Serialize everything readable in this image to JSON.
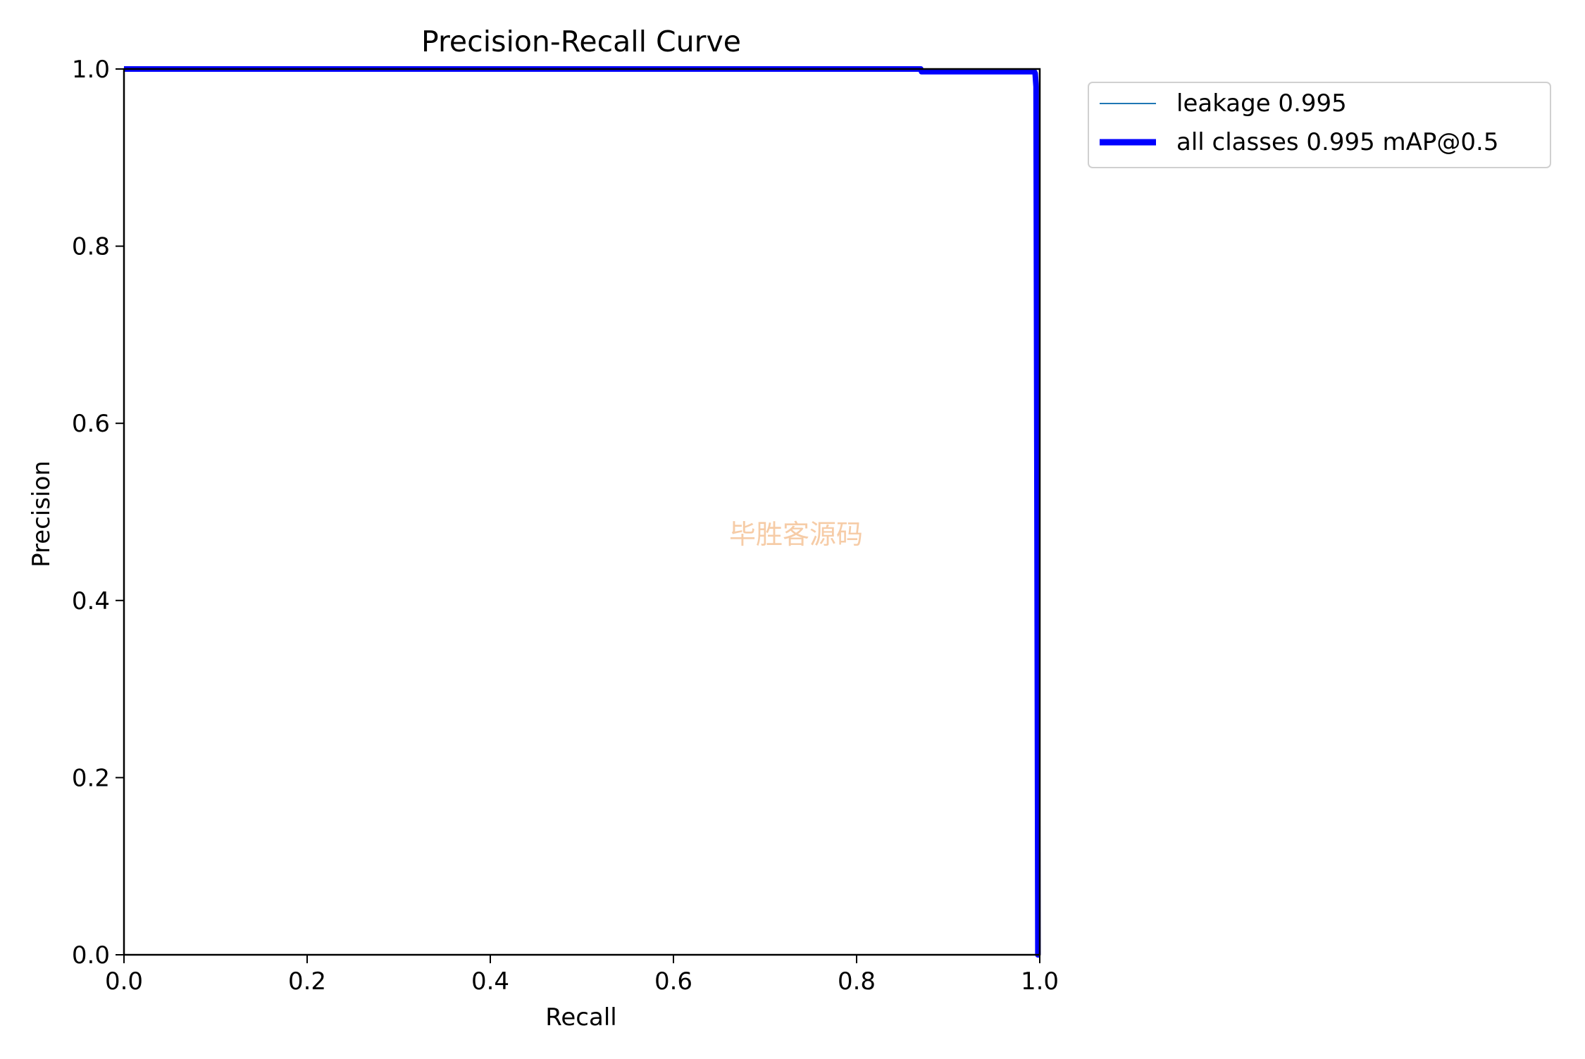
{
  "chart_data": {
    "type": "line",
    "title": "Precision-Recall Curve",
    "xlabel": "Recall",
    "ylabel": "Precision",
    "xlim": [
      0.0,
      1.0
    ],
    "ylim": [
      0.0,
      1.0
    ],
    "xticks": [
      "0.0",
      "0.2",
      "0.4",
      "0.6",
      "0.8",
      "1.0"
    ],
    "yticks": [
      "0.0",
      "0.2",
      "0.4",
      "0.6",
      "0.8",
      "1.0"
    ],
    "grid": false,
    "legend_position": "outside-top-right",
    "series": [
      {
        "name": "leakage 0.995",
        "color": "#1f77b4",
        "style": "thin",
        "x": [
          0.0,
          0.87,
          0.871,
          0.994,
          0.995,
          0.996,
          0.997,
          0.998,
          1.0
        ],
        "y": [
          1.0,
          1.0,
          0.997,
          0.997,
          0.995,
          0.98,
          0.5,
          0.0,
          0.0
        ]
      },
      {
        "name": "all classes 0.995 mAP@0.5",
        "color": "#0000ff",
        "style": "thick",
        "x": [
          0.0,
          0.87,
          0.871,
          0.994,
          0.995,
          0.996,
          0.997,
          0.998,
          1.0
        ],
        "y": [
          1.0,
          1.0,
          0.997,
          0.997,
          0.995,
          0.98,
          0.5,
          0.0,
          0.0
        ]
      }
    ]
  },
  "watermark": "毕胜客源码"
}
